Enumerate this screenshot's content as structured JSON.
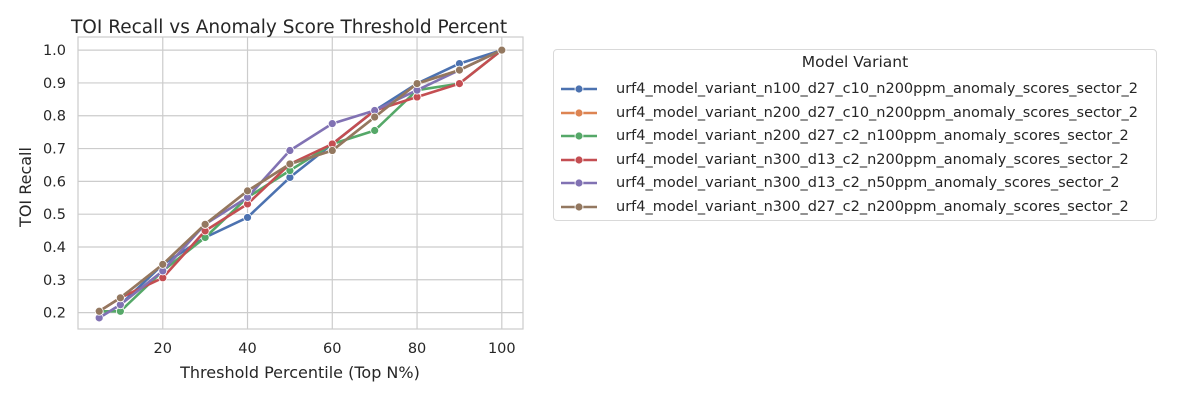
{
  "chart_data": {
    "type": "line",
    "title": "TOI Recall vs Anomaly Score Threshold Percent",
    "xlabel": "Threshold Percentile (Top N%)",
    "ylabel": "TOI Recall",
    "xlim": [
      0,
      105
    ],
    "ylim": [
      0.15,
      1.04
    ],
    "xticks": [
      20,
      40,
      60,
      80,
      100
    ],
    "yticks": [
      0.2,
      0.3,
      0.4,
      0.5,
      0.6,
      0.7,
      0.8,
      0.9,
      1.0
    ],
    "grid": true,
    "legend_title": "Model Variant",
    "legend_position": "outside-right",
    "x": [
      5,
      10,
      20,
      30,
      40,
      50,
      60,
      70,
      80,
      90,
      100
    ],
    "series": [
      {
        "name": "urf4_model_variant_n100_d27_c10_n200ppm_anomaly_scores_sector_2",
        "color": "#4c72b0",
        "values": [
          0.184,
          0.224,
          0.347,
          0.429,
          0.49,
          0.612,
          0.714,
          0.816,
          0.898,
          0.959,
          1.0
        ]
      },
      {
        "name": "urf4_model_variant_n200_d27_c10_n200ppm_anomaly_scores_sector_2",
        "color": "#dd8452",
        "values": [
          0.204,
          0.245,
          0.347,
          0.469,
          0.571,
          0.653,
          0.694,
          0.796,
          0.898,
          0.939,
          1.0
        ]
      },
      {
        "name": "urf4_model_variant_n200_d27_c2_n100ppm_anomaly_scores_sector_2",
        "color": "#55a868",
        "values": [
          0.204,
          0.204,
          0.327,
          0.429,
          0.551,
          0.633,
          0.714,
          0.755,
          0.878,
          0.898,
          1.0
        ]
      },
      {
        "name": "urf4_model_variant_n300_d13_c2_n200ppm_anomaly_scores_sector_2",
        "color": "#c44e52",
        "values": [
          0.204,
          0.245,
          0.306,
          0.449,
          0.531,
          0.653,
          0.714,
          0.816,
          0.857,
          0.898,
          1.0
        ]
      },
      {
        "name": "urf4_model_variant_n300_d13_c2_n50ppm_anomaly_scores_sector_2",
        "color": "#8172b3",
        "values": [
          0.184,
          0.224,
          0.327,
          0.469,
          0.551,
          0.694,
          0.776,
          0.816,
          0.878,
          0.939,
          1.0
        ]
      },
      {
        "name": "urf4_model_variant_n300_d27_c2_n200ppm_anomaly_scores_sector_2",
        "color": "#937860",
        "values": [
          0.204,
          0.245,
          0.347,
          0.469,
          0.571,
          0.653,
          0.694,
          0.796,
          0.898,
          0.939,
          1.0
        ]
      }
    ]
  }
}
